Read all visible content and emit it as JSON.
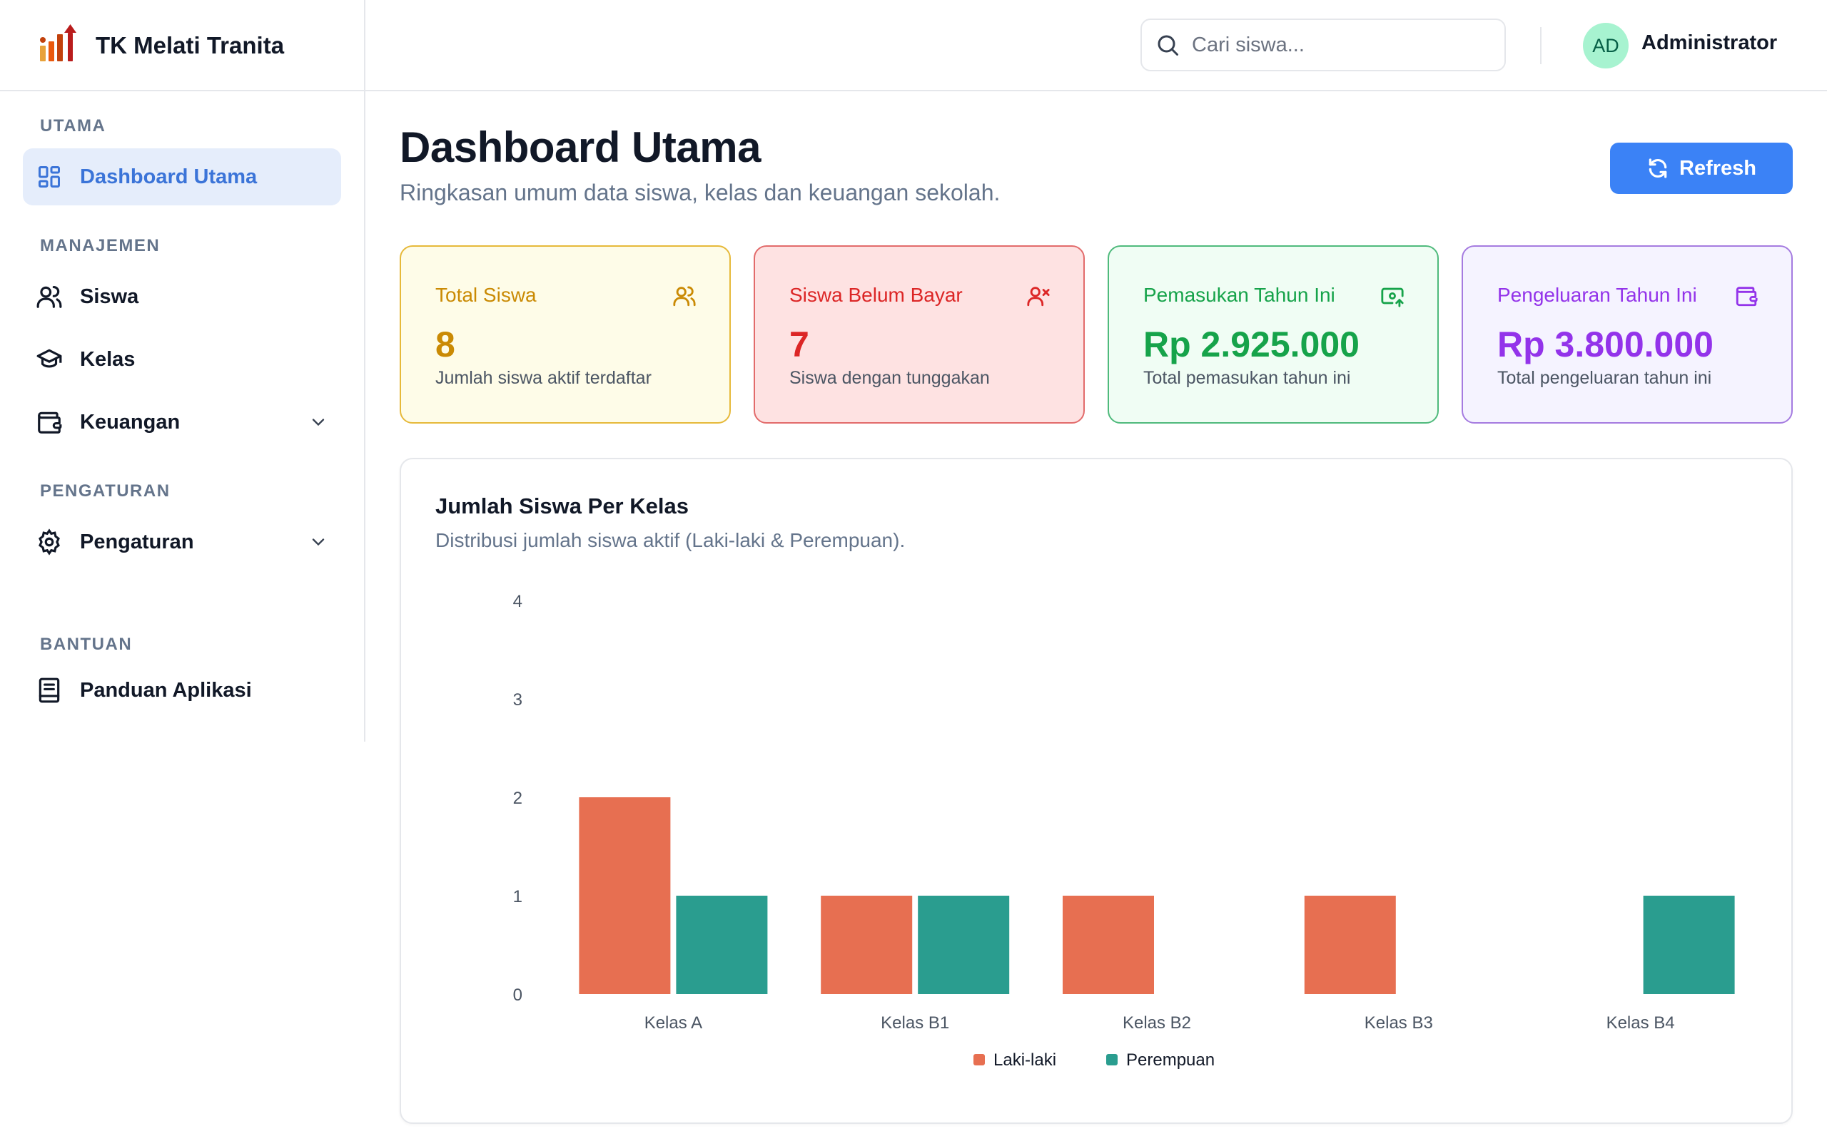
{
  "brand": {
    "name": "TK Melati Tranita"
  },
  "search": {
    "placeholder": "Cari siswa..."
  },
  "user": {
    "initials": "AD",
    "name": "Administrator"
  },
  "sidebar": {
    "sections": [
      {
        "label": "UTAMA"
      },
      {
        "label": "MANAJEMEN"
      },
      {
        "label": "PENGATURAN"
      },
      {
        "label": "BANTUAN"
      }
    ],
    "items": [
      {
        "label": "Dashboard Utama",
        "icon": "dashboard-grid-icon",
        "active": true
      },
      {
        "label": "Siswa",
        "icon": "users-icon"
      },
      {
        "label": "Kelas",
        "icon": "graduation-cap-icon"
      },
      {
        "label": "Keuangan",
        "icon": "wallet-icon",
        "expandable": true
      },
      {
        "label": "Pengaturan",
        "icon": "gear-icon",
        "expandable": true
      },
      {
        "label": "Panduan Aplikasi",
        "icon": "book-icon"
      }
    ]
  },
  "page": {
    "title": "Dashboard Utama",
    "subtitle": "Ringkasan umum data siswa, kelas dan keuangan sekolah.",
    "refresh_label": "Refresh"
  },
  "cards": [
    {
      "title": "Total Siswa",
      "value": "8",
      "note": "Jumlah siswa aktif terdaftar",
      "icon": "users-icon",
      "color": "#ca8a04",
      "bg": "#fefce8",
      "border": "#e6b93a"
    },
    {
      "title": "Siswa Belum Bayar",
      "value": "7",
      "note": "Siswa dengan tunggakan",
      "icon": "user-x-icon",
      "color": "#dc2626",
      "bg": "#fee2e2",
      "border": "#e26b6b"
    },
    {
      "title": "Pemasukan Tahun Ini",
      "value": "Rp 2.925.000",
      "note": "Total pemasukan tahun ini",
      "icon": "money-in-icon",
      "color": "#16a34a",
      "bg": "#f0fdf4",
      "border": "#4fba7c"
    },
    {
      "title": "Pengeluaran Tahun Ini",
      "value": "Rp 3.800.000",
      "note": "Total pengeluaran tahun ini",
      "icon": "wallet-icon",
      "color": "#9333ea",
      "bg": "#f5f3ff",
      "border": "#a57be0"
    }
  ],
  "chart_panel": {
    "title": "Jumlah Siswa Per Kelas",
    "subtitle": "Distribusi jumlah siswa aktif (Laki-laki & Perempuan)."
  },
  "chart_data": {
    "type": "bar",
    "categories": [
      "Kelas A",
      "Kelas B1",
      "Kelas B2",
      "Kelas B3",
      "Kelas B4"
    ],
    "series": [
      {
        "name": "Laki-laki",
        "values": [
          2,
          1,
          1,
          1,
          0
        ],
        "color": "#e76f51"
      },
      {
        "name": "Perempuan",
        "values": [
          1,
          1,
          0,
          0,
          1
        ],
        "color": "#2a9d8f"
      }
    ],
    "ylim": [
      0,
      4
    ],
    "yticks": [
      0,
      1,
      2,
      3,
      4
    ],
    "grid": false,
    "legend_position": "bottom-center"
  }
}
